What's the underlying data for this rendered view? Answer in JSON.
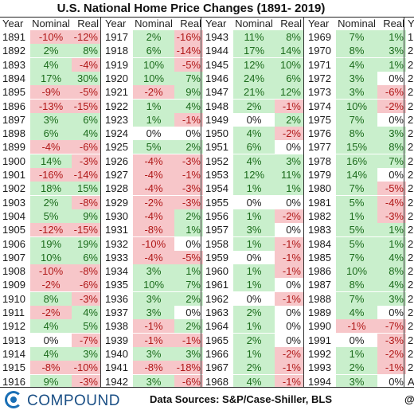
{
  "title": "U.S. National Home Price Changes (1891- 2019)",
  "headers": {
    "year": "Year",
    "nominal": "Nominal",
    "real": "Real"
  },
  "colors": {
    "positive_bg": "#c9efcc",
    "negative_bg": "#f7c6c9",
    "positive_text": "#1b6b1b",
    "negative_text": "#b01818",
    "brand": "#1a6fb5"
  },
  "columns": [
    [
      {
        "year": "1891",
        "nominal": "-10%",
        "real": "-12%"
      },
      {
        "year": "1892",
        "nominal": "2%",
        "real": "8%"
      },
      {
        "year": "1893",
        "nominal": "4%",
        "real": "-4%"
      },
      {
        "year": "1894",
        "nominal": "17%",
        "real": "30%"
      },
      {
        "year": "1895",
        "nominal": "-9%",
        "real": "-5%"
      },
      {
        "year": "1896",
        "nominal": "-13%",
        "real": "-15%"
      },
      {
        "year": "1897",
        "nominal": "3%",
        "real": "6%"
      },
      {
        "year": "1898",
        "nominal": "6%",
        "real": "4%"
      },
      {
        "year": "1899",
        "nominal": "-4%",
        "real": "-6%"
      },
      {
        "year": "1900",
        "nominal": "14%",
        "real": "-3%"
      },
      {
        "year": "1901",
        "nominal": "-16%",
        "real": "-14%"
      },
      {
        "year": "1902",
        "nominal": "18%",
        "real": "15%"
      },
      {
        "year": "1903",
        "nominal": "2%",
        "real": "-8%"
      },
      {
        "year": "1904",
        "nominal": "5%",
        "real": "9%"
      },
      {
        "year": "1905",
        "nominal": "-12%",
        "real": "-15%"
      },
      {
        "year": "1906",
        "nominal": "19%",
        "real": "19%"
      },
      {
        "year": "1907",
        "nominal": "10%",
        "real": "6%"
      },
      {
        "year": "1908",
        "nominal": "-10%",
        "real": "-8%"
      },
      {
        "year": "1909",
        "nominal": "-2%",
        "real": "-6%"
      },
      {
        "year": "1910",
        "nominal": "8%",
        "real": "-3%"
      },
      {
        "year": "1911",
        "nominal": "-2%",
        "real": "4%"
      },
      {
        "year": "1912",
        "nominal": "4%",
        "real": "5%"
      },
      {
        "year": "1913",
        "nominal": "0%",
        "real": "-7%"
      },
      {
        "year": "1914",
        "nominal": "4%",
        "real": "3%"
      },
      {
        "year": "1915",
        "nominal": "-8%",
        "real": "-10%"
      },
      {
        "year": "1916",
        "nominal": "9%",
        "real": "-3%"
      }
    ],
    [
      {
        "year": "1917",
        "nominal": "2%",
        "real": "-16%"
      },
      {
        "year": "1918",
        "nominal": "6%",
        "real": "-14%"
      },
      {
        "year": "1919",
        "nominal": "10%",
        "real": "-5%"
      },
      {
        "year": "1920",
        "nominal": "10%",
        "real": "7%"
      },
      {
        "year": "1921",
        "nominal": "-2%",
        "real": "9%"
      },
      {
        "year": "1922",
        "nominal": "1%",
        "real": "4%"
      },
      {
        "year": "1923",
        "nominal": "1%",
        "real": "-1%"
      },
      {
        "year": "1924",
        "nominal": "0%",
        "real": "0%"
      },
      {
        "year": "1925",
        "nominal": "5%",
        "real": "2%"
      },
      {
        "year": "1926",
        "nominal": "-4%",
        "real": "-3%"
      },
      {
        "year": "1927",
        "nominal": "-4%",
        "real": "-1%"
      },
      {
        "year": "1928",
        "nominal": "-4%",
        "real": "-3%"
      },
      {
        "year": "1929",
        "nominal": "-2%",
        "real": "-3%"
      },
      {
        "year": "1930",
        "nominal": "-4%",
        "real": "2%"
      },
      {
        "year": "1931",
        "nominal": "-8%",
        "real": "1%"
      },
      {
        "year": "1932",
        "nominal": "-10%",
        "real": "0%"
      },
      {
        "year": "1933",
        "nominal": "-4%",
        "real": "-5%"
      },
      {
        "year": "1934",
        "nominal": "3%",
        "real": "1%"
      },
      {
        "year": "1935",
        "nominal": "10%",
        "real": "7%"
      },
      {
        "year": "1936",
        "nominal": "3%",
        "real": "2%"
      },
      {
        "year": "1937",
        "nominal": "3%",
        "real": "0%"
      },
      {
        "year": "1938",
        "nominal": "-1%",
        "real": "2%"
      },
      {
        "year": "1939",
        "nominal": "-1%",
        "real": "-1%"
      },
      {
        "year": "1940",
        "nominal": "3%",
        "real": "3%"
      },
      {
        "year": "1941",
        "nominal": "-8%",
        "real": "-18%"
      },
      {
        "year": "1942",
        "nominal": "3%",
        "real": "-6%"
      }
    ],
    [
      {
        "year": "1943",
        "nominal": "11%",
        "real": "8%"
      },
      {
        "year": "1944",
        "nominal": "17%",
        "real": "14%"
      },
      {
        "year": "1945",
        "nominal": "12%",
        "real": "10%"
      },
      {
        "year": "1946",
        "nominal": "24%",
        "real": "6%"
      },
      {
        "year": "1947",
        "nominal": "21%",
        "real": "12%"
      },
      {
        "year": "1948",
        "nominal": "2%",
        "real": "-1%"
      },
      {
        "year": "1949",
        "nominal": "0%",
        "real": "2%"
      },
      {
        "year": "1950",
        "nominal": "4%",
        "real": "-2%"
      },
      {
        "year": "1951",
        "nominal": "6%",
        "real": "0%"
      },
      {
        "year": "1952",
        "nominal": "4%",
        "real": "3%"
      },
      {
        "year": "1953",
        "nominal": "12%",
        "real": "11%"
      },
      {
        "year": "1954",
        "nominal": "1%",
        "real": "1%"
      },
      {
        "year": "1955",
        "nominal": "0%",
        "real": "0%"
      },
      {
        "year": "1956",
        "nominal": "1%",
        "real": "-2%"
      },
      {
        "year": "1957",
        "nominal": "3%",
        "real": "0%"
      },
      {
        "year": "1958",
        "nominal": "1%",
        "real": "-1%"
      },
      {
        "year": "1959",
        "nominal": "0%",
        "real": "-1%"
      },
      {
        "year": "1960",
        "nominal": "1%",
        "real": "-1%"
      },
      {
        "year": "1961",
        "nominal": "1%",
        "real": "0%"
      },
      {
        "year": "1962",
        "nominal": "0%",
        "real": "-1%"
      },
      {
        "year": "1963",
        "nominal": "2%",
        "real": "0%"
      },
      {
        "year": "1964",
        "nominal": "1%",
        "real": "0%"
      },
      {
        "year": "1965",
        "nominal": "2%",
        "real": "0%"
      },
      {
        "year": "1966",
        "nominal": "1%",
        "real": "-2%"
      },
      {
        "year": "1967",
        "nominal": "2%",
        "real": "-1%"
      },
      {
        "year": "1968",
        "nominal": "4%",
        "real": "-1%"
      }
    ],
    [
      {
        "year": "1969",
        "nominal": "7%",
        "real": "1%"
      },
      {
        "year": "1970",
        "nominal": "8%",
        "real": "3%"
      },
      {
        "year": "1971",
        "nominal": "4%",
        "real": "1%"
      },
      {
        "year": "1972",
        "nominal": "3%",
        "real": "0%"
      },
      {
        "year": "1973",
        "nominal": "3%",
        "real": "-6%"
      },
      {
        "year": "1974",
        "nominal": "10%",
        "real": "-2%"
      },
      {
        "year": "1975",
        "nominal": "7%",
        "real": "0%"
      },
      {
        "year": "1976",
        "nominal": "8%",
        "real": "3%"
      },
      {
        "year": "1977",
        "nominal": "15%",
        "real": "8%"
      },
      {
        "year": "1978",
        "nominal": "16%",
        "real": "7%"
      },
      {
        "year": "1979",
        "nominal": "14%",
        "real": "0%"
      },
      {
        "year": "1980",
        "nominal": "7%",
        "real": "-5%"
      },
      {
        "year": "1981",
        "nominal": "5%",
        "real": "-4%"
      },
      {
        "year": "1982",
        "nominal": "1%",
        "real": "-3%"
      },
      {
        "year": "1983",
        "nominal": "5%",
        "real": "1%"
      },
      {
        "year": "1984",
        "nominal": "5%",
        "real": "1%"
      },
      {
        "year": "1985",
        "nominal": "7%",
        "real": "4%"
      },
      {
        "year": "1986",
        "nominal": "10%",
        "real": "8%"
      },
      {
        "year": "1987",
        "nominal": "8%",
        "real": "4%"
      },
      {
        "year": "1988",
        "nominal": "7%",
        "real": "3%"
      },
      {
        "year": "1989",
        "nominal": "4%",
        "real": "0%"
      },
      {
        "year": "1990",
        "nominal": "-1%",
        "real": "-7%"
      },
      {
        "year": "1991",
        "nominal": "0%",
        "real": "-3%"
      },
      {
        "year": "1992",
        "nominal": "1%",
        "real": "-2%"
      },
      {
        "year": "1993",
        "nominal": "2%",
        "real": "-1%"
      },
      {
        "year": "1994",
        "nominal": "3%",
        "real": "0%"
      }
    ]
  ],
  "partial_column": {
    "header_char": "Y",
    "cells": [
      "1",
      "2",
      "2",
      "2",
      "2",
      "2",
      "2",
      "2",
      "2",
      "2",
      "2",
      "2",
      "2",
      "2",
      "2",
      "2",
      "2",
      "2",
      "2",
      "2",
      "2",
      "2",
      "2",
      "2",
      "2",
      "A"
    ]
  },
  "footer": {
    "logo_text": "COMPOUND",
    "sources": "Data Sources: S&P/Case-Shiller, BLS",
    "handle": "@"
  }
}
